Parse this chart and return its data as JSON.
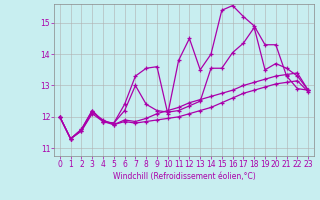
{
  "xlabel": "Windchill (Refroidissement éolien,°C)",
  "background_color": "#c8eef0",
  "grid_color": "#b0b0b0",
  "line_color": "#aa00aa",
  "xlim": [
    -0.5,
    23.5
  ],
  "ylim": [
    10.75,
    15.6
  ],
  "yticks": [
    11,
    12,
    13,
    14,
    15
  ],
  "xticks": [
    0,
    1,
    2,
    3,
    4,
    5,
    6,
    7,
    8,
    9,
    10,
    11,
    12,
    13,
    14,
    15,
    16,
    17,
    18,
    19,
    20,
    21,
    22,
    23
  ],
  "series": [
    [
      12.0,
      11.3,
      11.6,
      12.2,
      11.85,
      11.8,
      12.4,
      13.3,
      13.55,
      13.6,
      12.1,
      13.8,
      14.5,
      13.5,
      14.0,
      15.4,
      15.55,
      15.2,
      14.9,
      14.3,
      14.3,
      13.3,
      12.9,
      12.85
    ],
    [
      12.0,
      11.3,
      11.6,
      12.2,
      11.85,
      11.8,
      12.2,
      13.0,
      12.4,
      12.2,
      12.15,
      12.2,
      12.35,
      12.5,
      13.55,
      13.55,
      14.05,
      14.35,
      14.85,
      13.5,
      13.7,
      13.55,
      13.3,
      12.85
    ],
    [
      12.0,
      11.3,
      11.55,
      12.15,
      11.9,
      11.75,
      11.9,
      11.85,
      11.95,
      12.1,
      12.2,
      12.3,
      12.45,
      12.55,
      12.65,
      12.75,
      12.85,
      13.0,
      13.1,
      13.2,
      13.3,
      13.35,
      13.4,
      12.85
    ],
    [
      12.0,
      11.3,
      11.55,
      12.1,
      11.85,
      11.75,
      11.85,
      11.8,
      11.85,
      11.9,
      11.95,
      12.0,
      12.1,
      12.2,
      12.3,
      12.45,
      12.6,
      12.75,
      12.85,
      12.95,
      13.05,
      13.1,
      13.15,
      12.8
    ]
  ]
}
